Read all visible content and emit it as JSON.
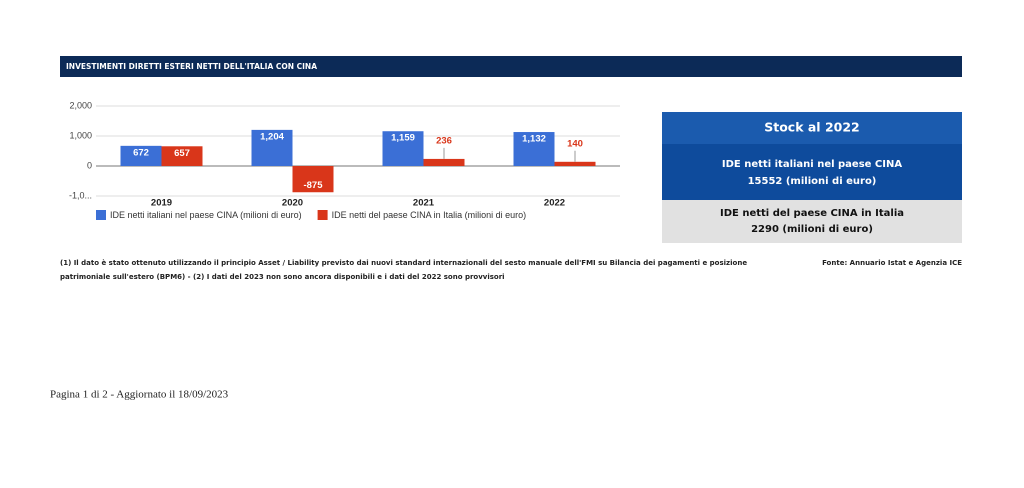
{
  "header": {
    "title": "INVESTIMENTI DIRETTI ESTERI NETTI DELL'ITALIA CON CINA"
  },
  "chart_data": {
    "type": "bar",
    "categories": [
      "2019",
      "2020",
      "2021",
      "2022"
    ],
    "series": [
      {
        "name": "IDE netti italiani nel paese CINA (milioni di euro)",
        "color": "#3b6fd6",
        "values": [
          672,
          1204,
          1159,
          1132
        ],
        "value_labels": [
          "672",
          "1,204",
          "1,159",
          "1,132"
        ]
      },
      {
        "name": "IDE netti del paese CINA in Italia (milioni di euro)",
        "color": "#d9361a",
        "values": [
          657,
          -875,
          236,
          140
        ],
        "value_labels": [
          "657",
          "-875",
          "236",
          "140"
        ]
      }
    ],
    "ylim": [
      -1000,
      2000
    ],
    "yticks": [
      {
        "value": 2000,
        "label": "2,000"
      },
      {
        "value": 1000,
        "label": "1,000"
      },
      0,
      {
        "value": -1000,
        "label": "-1,0..."
      }
    ],
    "grid": true,
    "legend": "bottom"
  },
  "stock": {
    "title": "Stock al 2022",
    "italy": {
      "line1": "IDE netti italiani nel paese CINA",
      "line2": "15552 (milioni di euro)"
    },
    "foreign": {
      "line1": "IDE netti del paese CINA in Italia",
      "line2": "2290 (milioni di euro)"
    }
  },
  "notes": {
    "lines": [
      "(1) Il dato è stato ottenuto utilizzando il principio Asset / Liability previsto dai nuovi standard internazionali del sesto manuale dell'FMI su Bilancia dei pagamenti e posizione",
      "patrimoniale sull'estero (BPM6) - (2) I dati del 2023 non sono ancora disponibili e i dati del 2022 sono provvisori"
    ],
    "source": "Fonte: Annuario Istat e Agenzia ICE"
  },
  "footer": {
    "text": "Pagina 1 di 2 - Aggiornato il 18/09/2023"
  }
}
